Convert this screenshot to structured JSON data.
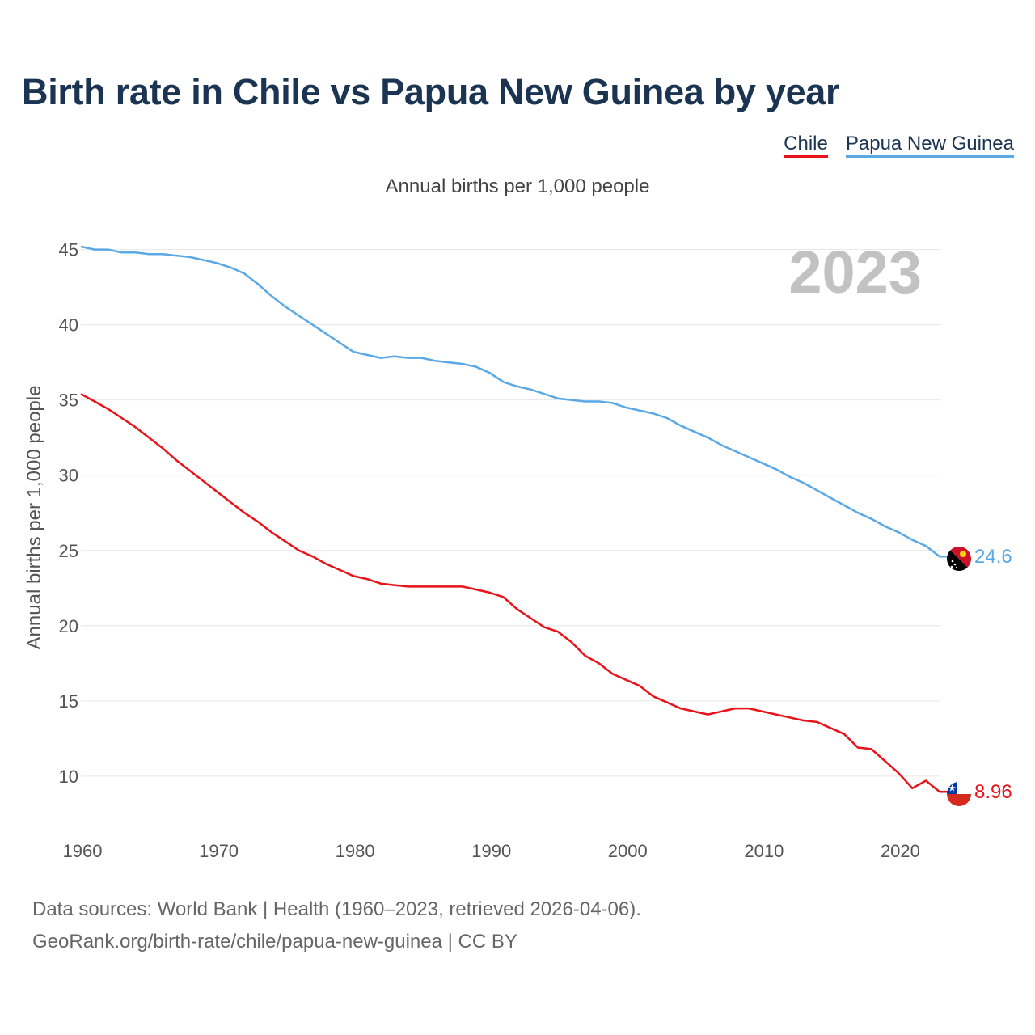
{
  "title": "Birth rate in Chile vs Papua New Guinea by year",
  "legend": {
    "chile": "Chile",
    "png": "Papua New Guinea"
  },
  "subtitle": "Annual births per 1,000 people",
  "source": {
    "line1": "Data sources: World Bank | Health (1960–2023, retrieved 2026-04-06).",
    "line2": "GeoRank.org/birth-rate/chile/papua-new-guinea | CC BY"
  },
  "chart_data": {
    "type": "line",
    "title": "Birth rate in Chile vs Papua New Guinea by year",
    "ylabel": "Annual births per 1,000 people",
    "xlabel": "",
    "year_watermark": "2023",
    "xlim": [
      1960,
      2023
    ],
    "ylim": [
      6.5,
      46
    ],
    "xticks": [
      1960,
      1970,
      1980,
      1990,
      2000,
      2010,
      2020
    ],
    "yticks": [
      10,
      15,
      20,
      25,
      30,
      35,
      40,
      45
    ],
    "colors": {
      "chile": "#e8141a",
      "png": "#5aa8e6"
    },
    "x": [
      1960,
      1961,
      1962,
      1963,
      1964,
      1965,
      1966,
      1967,
      1968,
      1969,
      1970,
      1971,
      1972,
      1973,
      1974,
      1975,
      1976,
      1977,
      1978,
      1979,
      1980,
      1981,
      1982,
      1983,
      1984,
      1985,
      1986,
      1987,
      1988,
      1989,
      1990,
      1991,
      1992,
      1993,
      1994,
      1995,
      1996,
      1997,
      1998,
      1999,
      2000,
      2001,
      2002,
      2003,
      2004,
      2005,
      2006,
      2007,
      2008,
      2009,
      2010,
      2011,
      2012,
      2013,
      2014,
      2015,
      2016,
      2017,
      2018,
      2019,
      2020,
      2021,
      2022,
      2023
    ],
    "series": [
      {
        "name": "Chile",
        "key": "chile",
        "end_label": "8.96",
        "values": [
          35.4,
          34.9,
          34.4,
          33.8,
          33.2,
          32.5,
          31.8,
          31.0,
          30.3,
          29.6,
          28.9,
          28.2,
          27.5,
          26.9,
          26.2,
          25.6,
          25.0,
          24.6,
          24.1,
          23.7,
          23.3,
          23.1,
          22.8,
          22.7,
          22.6,
          22.6,
          22.6,
          22.6,
          22.6,
          22.4,
          22.2,
          21.9,
          21.1,
          20.5,
          19.9,
          19.6,
          18.9,
          18.0,
          17.5,
          16.8,
          16.4,
          16.0,
          15.3,
          14.9,
          14.5,
          14.3,
          14.1,
          14.3,
          14.5,
          14.5,
          14.3,
          14.1,
          13.9,
          13.7,
          13.6,
          13.2,
          12.8,
          11.9,
          11.8,
          11.0,
          10.2,
          9.2,
          9.7,
          8.96
        ]
      },
      {
        "name": "Papua New Guinea",
        "key": "png",
        "end_label": "24.6",
        "values": [
          45.2,
          45.0,
          45.0,
          44.8,
          44.8,
          44.7,
          44.7,
          44.6,
          44.5,
          44.3,
          44.1,
          43.8,
          43.4,
          42.7,
          41.9,
          41.2,
          40.6,
          40.0,
          39.4,
          38.8,
          38.2,
          38.0,
          37.8,
          37.9,
          37.8,
          37.8,
          37.6,
          37.5,
          37.4,
          37.2,
          36.8,
          36.2,
          35.9,
          35.7,
          35.4,
          35.1,
          35.0,
          34.9,
          34.9,
          34.8,
          34.5,
          34.3,
          34.1,
          33.8,
          33.3,
          32.9,
          32.5,
          32.0,
          31.6,
          31.2,
          30.8,
          30.4,
          29.9,
          29.5,
          29.0,
          28.5,
          28.0,
          27.5,
          27.1,
          26.6,
          26.2,
          25.7,
          25.3,
          24.6
        ]
      }
    ]
  }
}
